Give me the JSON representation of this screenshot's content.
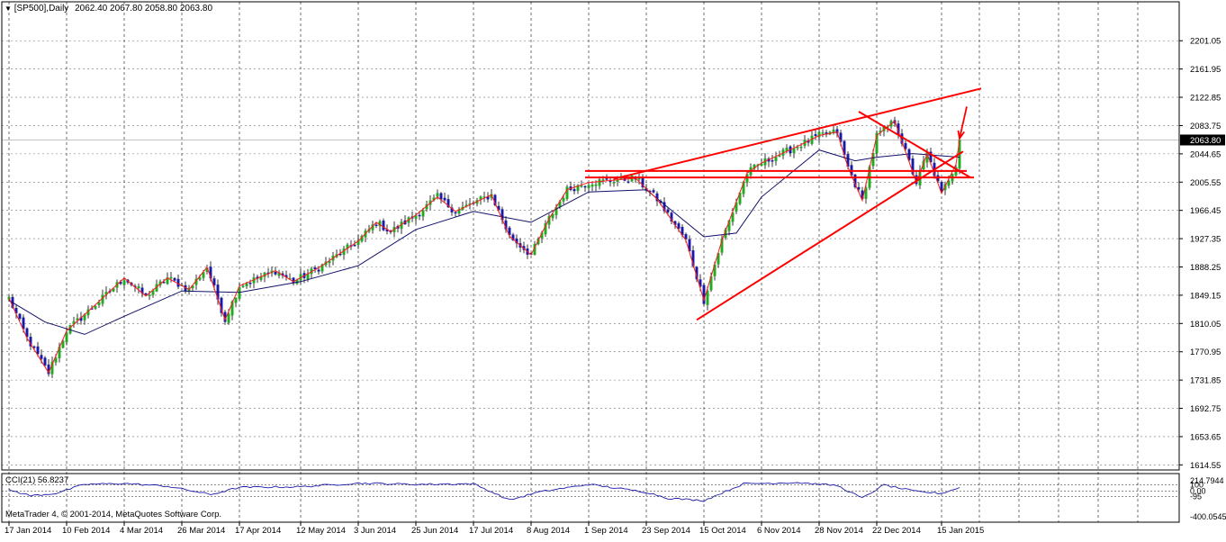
{
  "header": {
    "symbol": "[SP500],Daily",
    "ohlc": "2062.40 2067.80 2058.80 2063.80",
    "marker": "▼"
  },
  "footer": {
    "copyright": "MetaTrader 4, © 2001-2014, MetaQuotes Software Corp."
  },
  "colors": {
    "bull": "#1faa1f",
    "bear": "#1a1aa8",
    "zigzag": "#ff1a1a",
    "trendline": "#ff0000",
    "ma": "#10106a",
    "grid": "#000000",
    "current_price_bg": "#000000"
  },
  "chart_data": [
    {
      "type": "candlestick",
      "title": "[SP500],Daily",
      "instrument": "SP500",
      "timeframe": "Daily",
      "last_ohlc": {
        "open": 2062.4,
        "high": 2067.8,
        "low": 2058.8,
        "close": 2063.8
      },
      "current_price": 2063.8,
      "current_price_label": "2063.80",
      "ylim": [
        1610,
        2225
      ],
      "y_ticks": [
        "2201.05",
        "2161.95",
        "2122.85",
        "2083.75",
        "2044.65",
        "2005.55",
        "1966.45",
        "1927.35",
        "1888.25",
        "1849.15",
        "1810.05",
        "1770.95",
        "1731.85",
        "1692.75",
        "1653.65",
        "1614.55"
      ],
      "x_ticks": [
        "17 Jan 2014",
        "10 Feb 2014",
        "4 Mar 2014",
        "26 Mar 2014",
        "17 Apr 2014",
        "12 May 2014",
        "3 Jun 2014",
        "25 Jun 2014",
        "17 Jul 2014",
        "8 Aug 2014",
        "1 Sep 2014",
        "23 Sep 2014",
        "15 Oct 2014",
        "6 Nov 2014",
        "28 Nov 2014",
        "22 Dec 2014",
        "15 Jan 2015"
      ],
      "close_path": [
        [
          "17 Jan 2014",
          1845
        ],
        [
          "24 Jan 2014",
          1790
        ],
        [
          "3 Feb 2014",
          1742
        ],
        [
          "10 Feb 2014",
          1800
        ],
        [
          "20 Feb 2014",
          1836
        ],
        [
          "4 Mar 2014",
          1873
        ],
        [
          "12 Mar 2014",
          1848
        ],
        [
          "20 Mar 2014",
          1873
        ],
        [
          "28 Mar 2014",
          1857
        ],
        [
          "4 Apr 2014",
          1888
        ],
        [
          "11 Apr 2014",
          1815
        ],
        [
          "17 Apr 2014",
          1862
        ],
        [
          "1 May 2014",
          1883
        ],
        [
          "8 May 2014",
          1868
        ],
        [
          "19 May 2014",
          1887
        ],
        [
          "3 Jun 2014",
          1924
        ],
        [
          "10 Jun 2014",
          1950
        ],
        [
          "16 Jun 2014",
          1937
        ],
        [
          "25 Jun 2014",
          1960
        ],
        [
          "3 Jul 2014",
          1985
        ],
        [
          "10 Jul 2014",
          1965
        ],
        [
          "24 Jul 2014",
          1988
        ],
        [
          "31 Jul 2014",
          1931
        ],
        [
          "8 Aug 2014",
          1905
        ],
        [
          "15 Aug 2014",
          1955
        ],
        [
          "22 Aug 2014",
          1995
        ],
        [
          "1 Sep 2014",
          2005
        ],
        [
          "18 Sep 2014",
          2011
        ],
        [
          "26 Sep 2014",
          1982
        ],
        [
          "8 Oct 2014",
          1925
        ],
        [
          "15 Oct 2014",
          1842
        ],
        [
          "22 Oct 2014",
          1925
        ],
        [
          "31 Oct 2014",
          2018
        ],
        [
          "6 Nov 2014",
          2032
        ],
        [
          "20 Nov 2014",
          2055
        ],
        [
          "28 Nov 2014",
          2070
        ],
        [
          "5 Dec 2014",
          2075
        ],
        [
          "10 Dec 2014",
          2026
        ],
        [
          "16 Dec 2014",
          1980
        ],
        [
          "22 Dec 2014",
          2070
        ],
        [
          "29 Dec 2014",
          2090
        ],
        [
          "6 Jan 2015",
          2005
        ],
        [
          "9 Jan 2015",
          2045
        ],
        [
          "15 Jan 2015",
          1990
        ],
        [
          "21 Jan 2015",
          2030
        ],
        [
          "22 Jan 2015",
          2063.8
        ]
      ],
      "series": [
        {
          "kind": "moving_average",
          "points": [
            [
              "17 Jan 2014",
              1842
            ],
            [
              "31 Jan 2014",
              1812
            ],
            [
              "17 Feb 2014",
              1795
            ],
            [
              "4 Mar 2014",
              1820
            ],
            [
              "26 Mar 2014",
              1855
            ],
            [
              "17 Apr 2014",
              1853
            ],
            [
              "12 May 2014",
              1868
            ],
            [
              "3 Jun 2014",
              1890
            ],
            [
              "25 Jun 2014",
              1940
            ],
            [
              "17 Jul 2014",
              1965
            ],
            [
              "8 Aug 2014",
              1950
            ],
            [
              "1 Sep 2014",
              1992
            ],
            [
              "23 Sep 2014",
              1995
            ],
            [
              "15 Oct 2014",
              1930
            ],
            [
              "28 Oct 2014",
              1935
            ],
            [
              "6 Nov 2014",
              1985
            ],
            [
              "28 Nov 2014",
              2050
            ],
            [
              "12 Dec 2014",
              2035
            ],
            [
              "22 Dec 2014",
              2040
            ],
            [
              "5 Jan 2015",
              2045
            ],
            [
              "22 Jan 2015",
              2040
            ]
          ]
        }
      ],
      "trendlines": [
        {
          "from": [
            "10 Sep 2014",
            2010
          ],
          "to": [
            "1 Feb 2015",
            2135
          ]
        },
        {
          "from": [
            "13 Oct 2014",
            1815
          ],
          "to": [
            "23 Jan 2015",
            2048
          ]
        },
        {
          "from": [
            "15 Dec 2014",
            2103
          ],
          "to": [
            "27 Jan 2015",
            2012
          ]
        },
        {
          "from": [
            "30 Aug 2014",
            2021
          ],
          "to": [
            "26 Jan 2015",
            2021
          ]
        },
        {
          "from": [
            "30 Aug 2014",
            2012
          ],
          "to": [
            "28 Jan 2015",
            2012
          ]
        }
      ],
      "arrow": {
        "from": [
          "26 Jan 2015",
          2110
        ],
        "to": [
          "22 Jan 2015",
          2066
        ]
      }
    },
    {
      "type": "line",
      "title": "CCI(21) 56.8237",
      "ylim": [
        -400.05,
        214.79
      ],
      "y_tick_labels": [
        "214.7944",
        "100",
        "0.00",
        "-95",
        "-400.0545"
      ],
      "series": [
        {
          "name": "CCI(21)",
          "points": [
            [
              "17 Jan 2014",
              20
            ],
            [
              "27 Jan 2014",
              -80
            ],
            [
              "5 Feb 2014",
              -40
            ],
            [
              "17 Feb 2014",
              110
            ],
            [
              "4 Mar 2014",
              125
            ],
            [
              "20 Mar 2014",
              80
            ],
            [
              "7 Apr 2014",
              -60
            ],
            [
              "17 Apr 2014",
              60
            ],
            [
              "12 May 2014",
              70
            ],
            [
              "3 Jun 2014",
              130
            ],
            [
              "25 Jun 2014",
              110
            ],
            [
              "17 Jul 2014",
              120
            ],
            [
              "31 Jul 2014",
              -150
            ],
            [
              "12 Aug 2014",
              -20
            ],
            [
              "1 Sep 2014",
              110
            ],
            [
              "23 Sep 2014",
              -20
            ],
            [
              "1 Oct 2014",
              -120
            ],
            [
              "15 Oct 2014",
              -160
            ],
            [
              "30 Oct 2014",
              120
            ],
            [
              "20 Nov 2014",
              140
            ],
            [
              "5 Dec 2014",
              90
            ],
            [
              "16 Dec 2014",
              -120
            ],
            [
              "24 Dec 2014",
              100
            ],
            [
              "6 Jan 2015",
              -10
            ],
            [
              "15 Jan 2015",
              -40
            ],
            [
              "22 Jan 2015",
              56.8237
            ]
          ]
        }
      ]
    }
  ]
}
